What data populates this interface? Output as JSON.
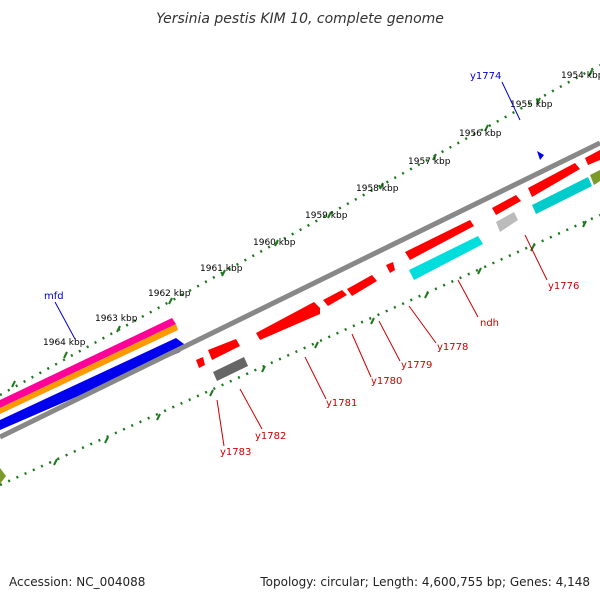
{
  "title": "Yersinia pestis KIM 10, complete genome",
  "footer": {
    "accession": "Accession: NC_004088",
    "summary": "Topology: circular; Length: 4,600,755 bp; Genes: 4,148"
  },
  "scale_labels": [
    "1954 kbp",
    "1955 kbp",
    "1956 kbp",
    "1957 kbp",
    "1958 kbp",
    "1959 kbp",
    "1960 kbp",
    "1961 kbp",
    "1962 kbp",
    "1963 kbp",
    "1964 kbp"
  ],
  "gene_labels_red": [
    "y1776",
    "ndh",
    "y1778",
    "y1779",
    "y1780",
    "y1781",
    "y1782",
    "y1783"
  ],
  "gene_labels_blue": [
    "y1774",
    "mfd"
  ],
  "colors": {
    "backbone": "#888888",
    "cds_forward": "#ff0000",
    "cds_reverse": "#ff0000",
    "cyan_feature": "#00dddd",
    "gray_feature": "#777777",
    "tick": "#1a7a1a",
    "magenta": "#ff0099",
    "orange": "#ff9900",
    "blue": "#0000ee",
    "olive": "#7a9a2a"
  }
}
